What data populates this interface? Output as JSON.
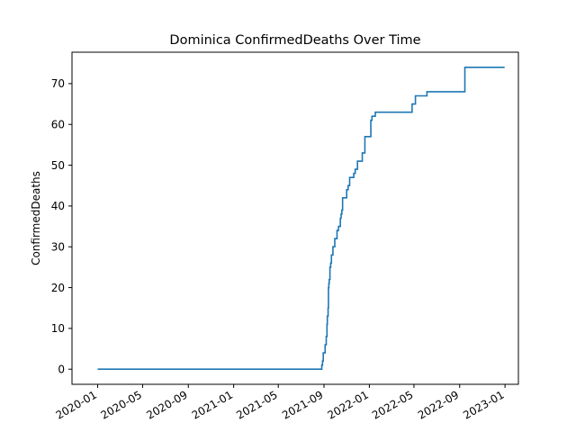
{
  "chart_data": {
    "type": "line",
    "title": "Dominica  ConfirmedDeaths Over Time",
    "xlabel": "",
    "ylabel": "ConfirmedDeaths",
    "x_axis_type": "date",
    "xlim": [
      "2019-10-24",
      "2023-02-06"
    ],
    "ylim": [
      -3.7,
      77.7
    ],
    "x_ticks": [
      "2020-01",
      "2020-05",
      "2020-09",
      "2021-01",
      "2021-05",
      "2021-09",
      "2022-01",
      "2022-05",
      "2022-09",
      "2023-01"
    ],
    "y_ticks": [
      0,
      10,
      20,
      30,
      40,
      50,
      60,
      70
    ],
    "grid": false,
    "line_color": "#1f77b4",
    "drawstyle": "steps-post",
    "series": [
      {
        "points": [
          [
            "2020-01-01",
            0
          ],
          [
            "2021-08-25",
            0
          ],
          [
            "2021-08-26",
            1
          ],
          [
            "2021-08-28",
            2
          ],
          [
            "2021-08-30",
            4
          ],
          [
            "2021-09-04",
            6
          ],
          [
            "2021-09-07",
            8
          ],
          [
            "2021-09-09",
            11
          ],
          [
            "2021-09-10",
            13
          ],
          [
            "2021-09-12",
            15
          ],
          [
            "2021-09-13",
            20
          ],
          [
            "2021-09-14",
            21
          ],
          [
            "2021-09-15",
            22
          ],
          [
            "2021-09-17",
            25
          ],
          [
            "2021-09-19",
            26
          ],
          [
            "2021-09-21",
            28
          ],
          [
            "2021-09-25",
            30
          ],
          [
            "2021-09-30",
            32
          ],
          [
            "2021-10-06",
            34
          ],
          [
            "2021-10-10",
            35
          ],
          [
            "2021-10-15",
            37
          ],
          [
            "2021-10-17",
            38
          ],
          [
            "2021-10-19",
            39
          ],
          [
            "2021-10-21",
            42
          ],
          [
            "2021-11-01",
            44
          ],
          [
            "2021-11-05",
            45
          ],
          [
            "2021-11-09",
            47
          ],
          [
            "2021-11-20",
            48
          ],
          [
            "2021-11-24",
            49
          ],
          [
            "2021-11-30",
            51
          ],
          [
            "2021-12-13",
            53
          ],
          [
            "2021-12-20",
            57
          ],
          [
            "2022-01-05",
            61
          ],
          [
            "2022-01-08",
            62
          ],
          [
            "2022-01-17",
            63
          ],
          [
            "2022-04-26",
            65
          ],
          [
            "2022-05-05",
            67
          ],
          [
            "2022-06-05",
            68
          ],
          [
            "2022-09-15",
            74
          ],
          [
            "2022-12-31",
            74
          ]
        ]
      }
    ]
  }
}
